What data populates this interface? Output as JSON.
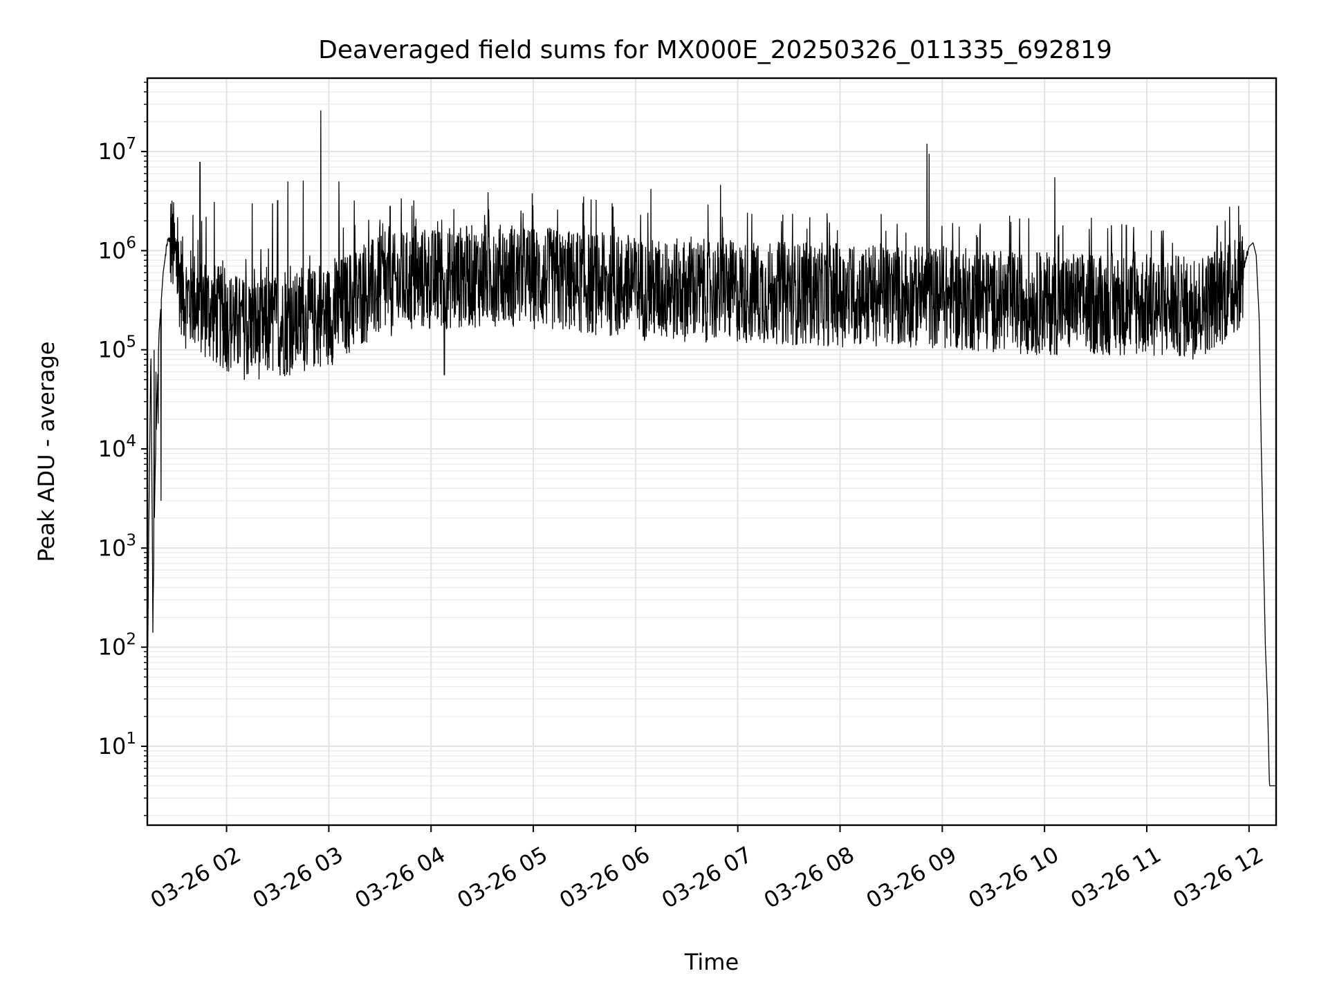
{
  "chart_data": {
    "type": "line",
    "title": "Deaveraged field sums for MX000E_20250326_011335_692819",
    "xlabel": "Time",
    "ylabel": "Peak ADU - average",
    "x_ticks": [
      "03-26 02",
      "03-26 03",
      "03-26 04",
      "03-26 05",
      "03-26 06",
      "03-26 07",
      "03-26 08",
      "03-26 09",
      "03-26 10",
      "03-26 11",
      "03-26 12"
    ],
    "x_tick_hours": [
      2,
      3,
      4,
      5,
      6,
      7,
      8,
      9,
      10,
      11,
      12
    ],
    "xlim_hours": [
      1.225,
      12.265
    ],
    "x_unit": "hour of 2025-03-26",
    "yscale": "log",
    "ylim": [
      1.6,
      55000000
    ],
    "y_ticks": [
      {
        "base": "10",
        "exp": "1",
        "value": 10
      },
      {
        "base": "10",
        "exp": "2",
        "value": 100
      },
      {
        "base": "10",
        "exp": "3",
        "value": 1000
      },
      {
        "base": "10",
        "exp": "4",
        "value": 10000
      },
      {
        "base": "10",
        "exp": "5",
        "value": 100000
      },
      {
        "base": "10",
        "exp": "6",
        "value": 1000000
      },
      {
        "base": "10",
        "exp": "7",
        "value": 10000000
      }
    ],
    "grid": true,
    "line_color": "#000000",
    "envelope": {
      "x_hours": [
        1.23,
        1.24,
        1.26,
        1.28,
        1.3,
        1.32,
        1.34,
        1.38,
        1.42,
        1.46,
        1.5,
        1.55,
        1.6,
        1.7,
        1.9,
        2.2,
        2.6,
        3.0,
        3.4,
        3.8,
        4.2,
        4.6,
        5.0,
        5.4,
        5.8,
        6.2,
        6.6,
        7.0,
        7.5,
        8.0,
        8.5,
        9.0,
        9.5,
        10.0,
        10.5,
        11.0,
        11.5,
        11.85,
        11.95,
        12.0,
        12.04,
        12.07,
        12.1,
        12.12,
        12.14,
        12.16,
        12.18,
        12.2,
        12.265
      ],
      "y_base": [
        100,
        2000,
        100000,
        200,
        5000,
        30000,
        150000,
        600000,
        1200000,
        1400000,
        900000,
        550000,
        380000,
        350000,
        250000,
        180000,
        200000,
        250000,
        450000,
        550000,
        600000,
        650000,
        600000,
        550000,
        500000,
        450000,
        450000,
        430000,
        420000,
        400000,
        400000,
        380000,
        350000,
        330000,
        330000,
        320000,
        300000,
        500000,
        700000,
        1100000,
        1200000,
        900000,
        200000,
        10000,
        1000,
        100,
        30,
        4,
        4
      ]
    },
    "spikes": [
      {
        "x": 1.28,
        "y": 140
      },
      {
        "x": 1.29,
        "y": 100000
      },
      {
        "x": 1.31,
        "y": 60000
      },
      {
        "x": 1.33,
        "y": 18000
      },
      {
        "x": 1.36,
        "y": 3000
      },
      {
        "x": 1.67,
        "y": 2300000
      },
      {
        "x": 1.74,
        "y": 7800000
      },
      {
        "x": 1.8,
        "y": 2200000
      },
      {
        "x": 1.88,
        "y": 3100000
      },
      {
        "x": 2.25,
        "y": 3000000
      },
      {
        "x": 2.45,
        "y": 3000000
      },
      {
        "x": 2.5,
        "y": 3200000
      },
      {
        "x": 2.6,
        "y": 5000000
      },
      {
        "x": 2.75,
        "y": 5100000
      },
      {
        "x": 2.92,
        "y": 26000000
      },
      {
        "x": 3.1,
        "y": 5000000
      },
      {
        "x": 3.25,
        "y": 3200000
      },
      {
        "x": 3.6,
        "y": 2800000
      },
      {
        "x": 4.13,
        "y": 56000
      },
      {
        "x": 6.15,
        "y": 4200000
      },
      {
        "x": 6.05,
        "y": 2300000
      },
      {
        "x": 6.83,
        "y": 4600000
      },
      {
        "x": 8.85,
        "y": 12000000
      },
      {
        "x": 8.87,
        "y": 9500000
      },
      {
        "x": 9.1,
        "y": 1900000
      },
      {
        "x": 10.1,
        "y": 5500000
      },
      {
        "x": 10.8,
        "y": 1800000
      }
    ]
  }
}
